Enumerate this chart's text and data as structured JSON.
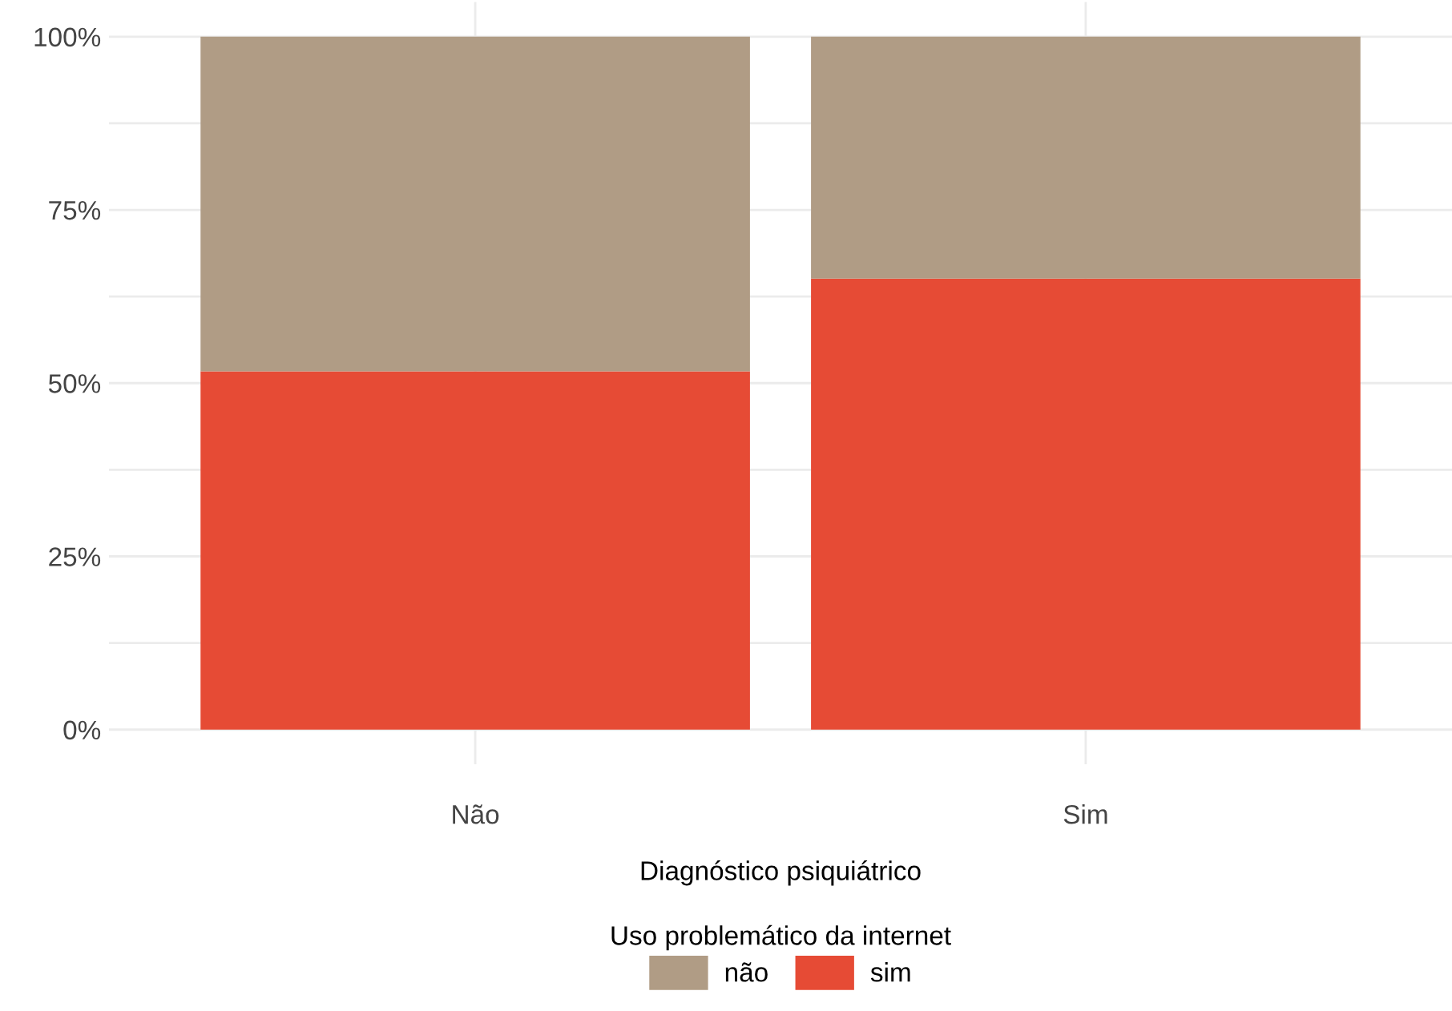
{
  "chart_data": {
    "type": "bar",
    "stacked": true,
    "categories": [
      "Não",
      "Sim"
    ],
    "series": [
      {
        "name": "sim",
        "color": "#e64b35",
        "values": [
          51.7,
          65.1
        ]
      },
      {
        "name": "não",
        "color": "#b09c85",
        "values": [
          48.3,
          34.9
        ]
      }
    ],
    "xlabel": "Diagnóstico psiquiátrico",
    "legend_title": "Uso problemático da internet",
    "legend": "bottom",
    "ylim": [
      -5,
      105
    ],
    "yticks": [
      {
        "value": 0,
        "label": "0%"
      },
      {
        "value": 12.5,
        "label": null
      },
      {
        "value": 25,
        "label": "25%"
      },
      {
        "value": 37.5,
        "label": null
      },
      {
        "value": 50,
        "label": "50%"
      },
      {
        "value": 62.5,
        "label": null
      },
      {
        "value": 75,
        "label": "75%"
      },
      {
        "value": 87.5,
        "label": null
      },
      {
        "value": 100,
        "label": "100%"
      }
    ],
    "grid": true
  }
}
